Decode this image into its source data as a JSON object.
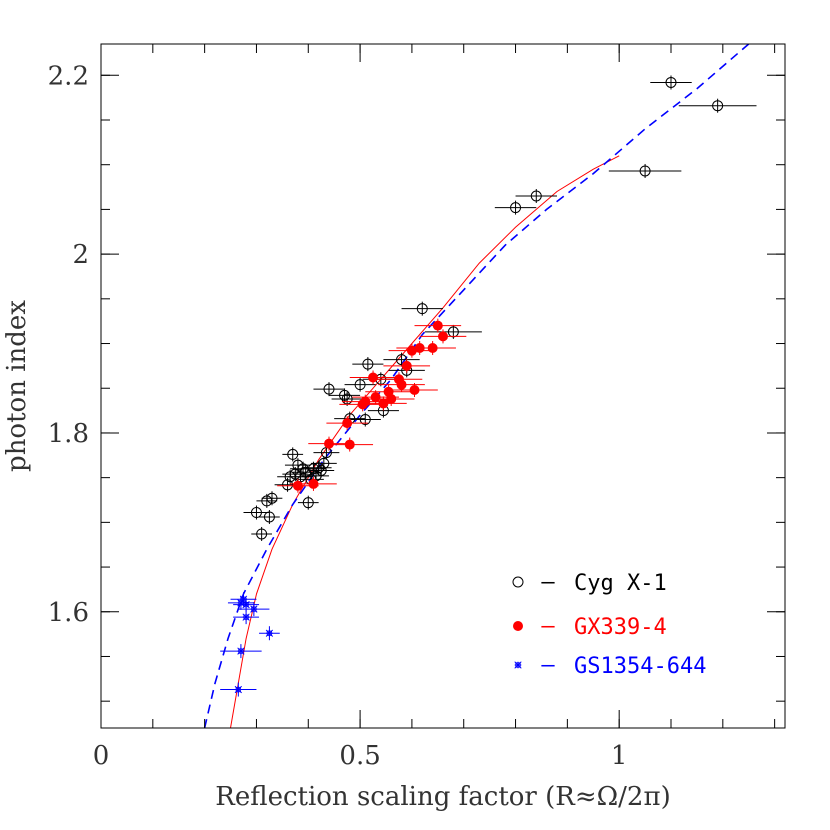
{
  "chart_data": {
    "type": "scatter",
    "xlabel": "Reflection scaling factor (R≈Ω/2π)",
    "ylabel": "photon index",
    "xlim": [
      0,
      1.32
    ],
    "ylim": [
      1.47,
      2.235
    ],
    "x_ticks": [
      {
        "value": 0,
        "label": "0"
      },
      {
        "value": 0.5,
        "label": "0.5"
      },
      {
        "value": 1,
        "label": "1"
      }
    ],
    "y_ticks": [
      {
        "value": 1.6,
        "label": "1.6"
      },
      {
        "value": 1.8,
        "label": "1.8"
      },
      {
        "value": 2.0,
        "label": "2"
      },
      {
        "value": 2.2,
        "label": "2.2"
      }
    ],
    "x_minor_step": 0.1,
    "y_minor_step": 0.05,
    "legend": {
      "placement": "bottom-right",
      "entries": [
        {
          "marker": "open-circle",
          "dash": "–",
          "label": "Cyg X-1",
          "color": "#000000"
        },
        {
          "marker": "filled-circle",
          "dash": "–",
          "label": "GX339-4",
          "color": "#ff0000"
        },
        {
          "marker": "star",
          "dash": "–",
          "label": "GS1354-644",
          "color": "#0000ff"
        }
      ]
    },
    "series": [
      {
        "name": "Cyg X-1",
        "marker": "open-circle",
        "color": "#000000",
        "points": [
          {
            "x": 0.3,
            "y": 1.711,
            "xerr": 0.025
          },
          {
            "x": 0.31,
            "y": 1.687,
            "xerr": 0.02
          },
          {
            "x": 0.32,
            "y": 1.724,
            "xerr": 0.02
          },
          {
            "x": 0.325,
            "y": 1.706,
            "xerr": 0.02
          },
          {
            "x": 0.33,
            "y": 1.727,
            "xerr": 0.02
          },
          {
            "x": 0.36,
            "y": 1.742,
            "xerr": 0.025
          },
          {
            "x": 0.365,
            "y": 1.751,
            "xerr": 0.025
          },
          {
            "x": 0.37,
            "y": 1.776,
            "xerr": 0.02
          },
          {
            "x": 0.375,
            "y": 1.754,
            "xerr": 0.025
          },
          {
            "x": 0.38,
            "y": 1.764,
            "xerr": 0.025
          },
          {
            "x": 0.385,
            "y": 1.751,
            "xerr": 0.025
          },
          {
            "x": 0.39,
            "y": 1.76,
            "xerr": 0.025
          },
          {
            "x": 0.395,
            "y": 1.756,
            "xerr": 0.025
          },
          {
            "x": 0.4,
            "y": 1.722,
            "xerr": 0.02
          },
          {
            "x": 0.405,
            "y": 1.748,
            "xerr": 0.025
          },
          {
            "x": 0.41,
            "y": 1.76,
            "xerr": 0.025
          },
          {
            "x": 0.415,
            "y": 1.752,
            "xerr": 0.025
          },
          {
            "x": 0.42,
            "y": 1.761,
            "xerr": 0.025
          },
          {
            "x": 0.425,
            "y": 1.758,
            "xerr": 0.025
          },
          {
            "x": 0.43,
            "y": 1.766,
            "xerr": 0.025
          },
          {
            "x": 0.435,
            "y": 1.778,
            "xerr": 0.025
          },
          {
            "x": 0.44,
            "y": 1.849,
            "xerr": 0.03
          },
          {
            "x": 0.47,
            "y": 1.842,
            "xerr": 0.03
          },
          {
            "x": 0.475,
            "y": 1.838,
            "xerr": 0.03
          },
          {
            "x": 0.48,
            "y": 1.816,
            "xerr": 0.03
          },
          {
            "x": 0.5,
            "y": 1.854,
            "xerr": 0.03
          },
          {
            "x": 0.51,
            "y": 1.815,
            "xerr": 0.03
          },
          {
            "x": 0.515,
            "y": 1.877,
            "xerr": 0.03
          },
          {
            "x": 0.54,
            "y": 1.86,
            "xerr": 0.035
          },
          {
            "x": 0.545,
            "y": 1.825,
            "xerr": 0.03
          },
          {
            "x": 0.58,
            "y": 1.882,
            "xerr": 0.035
          },
          {
            "x": 0.59,
            "y": 1.87,
            "xerr": 0.035
          },
          {
            "x": 0.62,
            "y": 1.939,
            "xerr": 0.04
          },
          {
            "x": 0.68,
            "y": 1.913,
            "xerr": 0.055
          },
          {
            "x": 0.8,
            "y": 2.052,
            "xerr": 0.04
          },
          {
            "x": 0.84,
            "y": 2.065,
            "xerr": 0.04
          },
          {
            "x": 1.05,
            "y": 2.093,
            "xerr": 0.07
          },
          {
            "x": 1.1,
            "y": 2.192,
            "xerr": 0.04
          },
          {
            "x": 1.19,
            "y": 2.166,
            "xerr": 0.075
          }
        ]
      },
      {
        "name": "GX339-4",
        "marker": "filled-circle",
        "color": "#ff0000",
        "points": [
          {
            "x": 0.38,
            "y": 1.741,
            "xerr": 0.04
          },
          {
            "x": 0.41,
            "y": 1.743,
            "xerr": 0.045
          },
          {
            "x": 0.44,
            "y": 1.788,
            "xerr": 0.04
          },
          {
            "x": 0.475,
            "y": 1.811,
            "xerr": 0.04
          },
          {
            "x": 0.48,
            "y": 1.787,
            "xerr": 0.045
          },
          {
            "x": 0.505,
            "y": 1.832,
            "xerr": 0.045
          },
          {
            "x": 0.51,
            "y": 1.835,
            "xerr": 0.045
          },
          {
            "x": 0.525,
            "y": 1.862,
            "xerr": 0.045
          },
          {
            "x": 0.53,
            "y": 1.84,
            "xerr": 0.045
          },
          {
            "x": 0.545,
            "y": 1.833,
            "xerr": 0.045
          },
          {
            "x": 0.555,
            "y": 1.846,
            "xerr": 0.045
          },
          {
            "x": 0.56,
            "y": 1.838,
            "xerr": 0.045
          },
          {
            "x": 0.575,
            "y": 1.86,
            "xerr": 0.045
          },
          {
            "x": 0.58,
            "y": 1.854,
            "xerr": 0.045
          },
          {
            "x": 0.59,
            "y": 1.875,
            "xerr": 0.045
          },
          {
            "x": 0.6,
            "y": 1.892,
            "xerr": 0.045
          },
          {
            "x": 0.605,
            "y": 1.848,
            "xerr": 0.045
          },
          {
            "x": 0.615,
            "y": 1.895,
            "xerr": 0.045
          },
          {
            "x": 0.64,
            "y": 1.895,
            "xerr": 0.045
          },
          {
            "x": 0.65,
            "y": 1.92,
            "xerr": 0.045
          },
          {
            "x": 0.66,
            "y": 1.908,
            "xerr": 0.045
          }
        ]
      },
      {
        "name": "GS1354-644",
        "marker": "star",
        "color": "#0000ff",
        "points": [
          {
            "x": 0.265,
            "y": 1.513,
            "xerr": 0.035
          },
          {
            "x": 0.27,
            "y": 1.556,
            "xerr": 0.04
          },
          {
            "x": 0.27,
            "y": 1.61,
            "xerr": 0.025
          },
          {
            "x": 0.275,
            "y": 1.614,
            "xerr": 0.025
          },
          {
            "x": 0.28,
            "y": 1.608,
            "xerr": 0.025
          },
          {
            "x": 0.28,
            "y": 1.594,
            "xerr": 0.025
          },
          {
            "x": 0.295,
            "y": 1.603,
            "xerr": 0.03
          },
          {
            "x": 0.325,
            "y": 1.576,
            "xerr": 0.02
          }
        ]
      }
    ],
    "curves": [
      {
        "name": "GX339-4 model",
        "color": "#ff0000",
        "style": "solid",
        "points": [
          [
            0.25,
            1.47
          ],
          [
            0.265,
            1.52
          ],
          [
            0.28,
            1.57
          ],
          [
            0.3,
            1.62
          ],
          [
            0.33,
            1.67
          ],
          [
            0.37,
            1.72
          ],
          [
            0.42,
            1.77
          ],
          [
            0.48,
            1.82
          ],
          [
            0.54,
            1.86
          ],
          [
            0.6,
            1.9
          ],
          [
            0.66,
            1.94
          ],
          [
            0.73,
            1.99
          ],
          [
            0.8,
            2.03
          ],
          [
            0.88,
            2.07
          ],
          [
            0.95,
            2.095
          ],
          [
            1.0,
            2.11
          ]
        ]
      },
      {
        "name": "GS1354-644 model",
        "color": "#0000ff",
        "style": "dashed",
        "points": [
          [
            0.2,
            1.47
          ],
          [
            0.22,
            1.52
          ],
          [
            0.245,
            1.57
          ],
          [
            0.275,
            1.62
          ],
          [
            0.32,
            1.67
          ],
          [
            0.37,
            1.72
          ],
          [
            0.43,
            1.77
          ],
          [
            0.5,
            1.82
          ],
          [
            0.56,
            1.86
          ],
          [
            0.62,
            1.91
          ],
          [
            0.7,
            1.96
          ],
          [
            0.78,
            2.01
          ],
          [
            0.86,
            2.05
          ],
          [
            0.95,
            2.09
          ],
          [
            1.05,
            2.14
          ],
          [
            1.15,
            2.185
          ],
          [
            1.25,
            2.235
          ]
        ]
      }
    ]
  }
}
